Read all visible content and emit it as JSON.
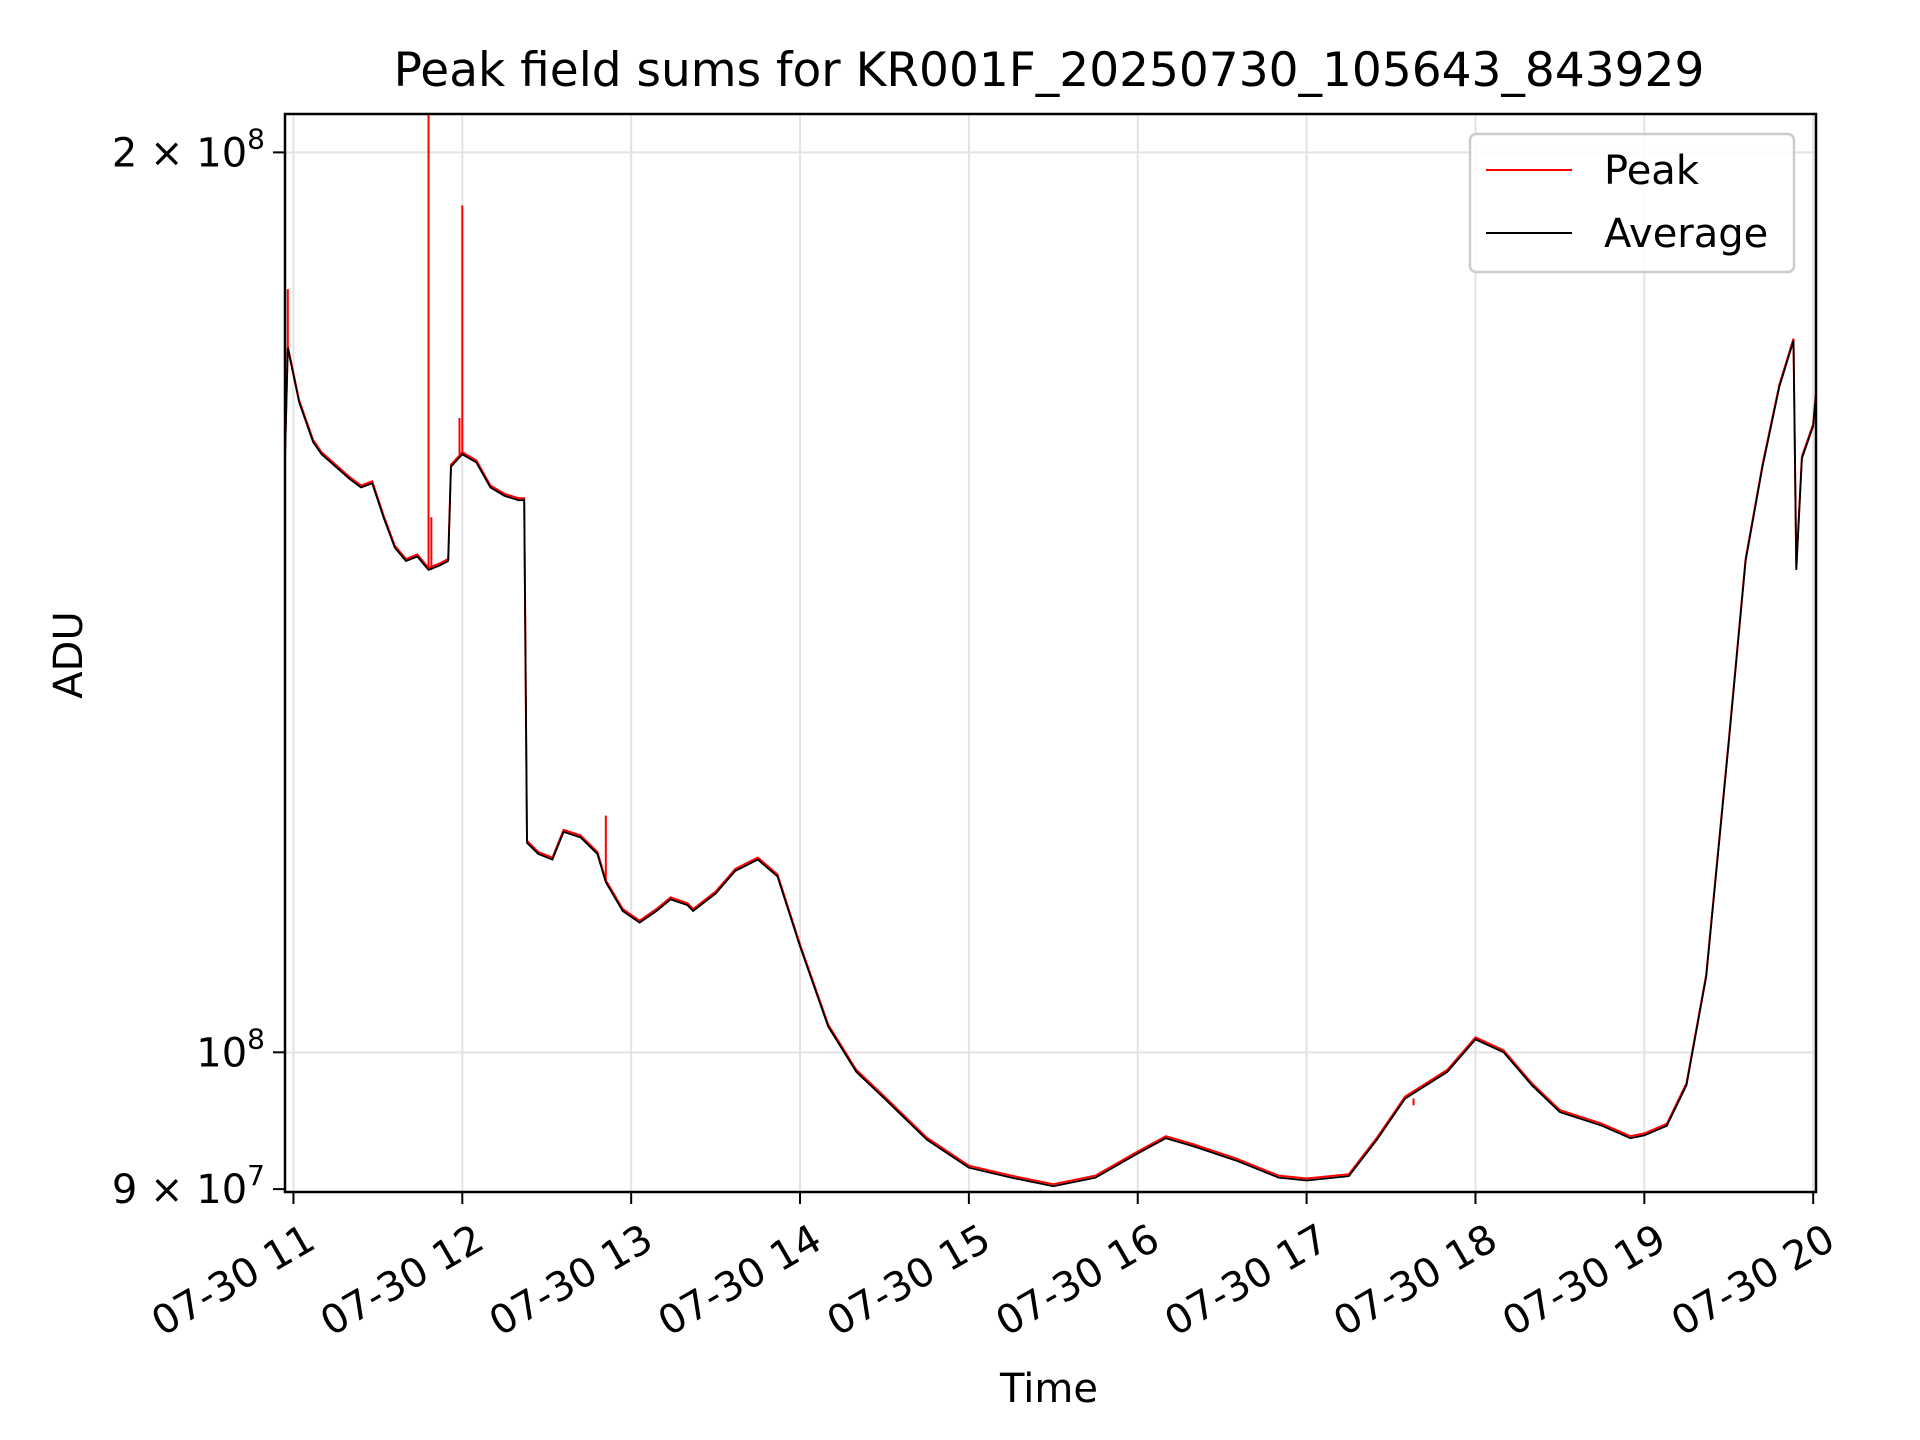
{
  "chart_data": {
    "type": "line",
    "title": "Peak field sums for KR001F_20250730_105643_843929",
    "xlabel": "Time",
    "ylabel": "ADU",
    "yscale": "log",
    "grid": true,
    "legend": {
      "placement": "top-right",
      "entries": [
        "Peak",
        "Average"
      ]
    },
    "xlim": [
      "2025-07-30 10:57",
      "2025-07-30 20:01"
    ],
    "ylim": [
      89800000,
      206000000
    ],
    "x_ticks": [
      {
        "value": "2025-07-30 11:00",
        "label": "07-30 11"
      },
      {
        "value": "2025-07-30 12:00",
        "label": "07-30 12"
      },
      {
        "value": "2025-07-30 13:00",
        "label": "07-30 13"
      },
      {
        "value": "2025-07-30 14:00",
        "label": "07-30 14"
      },
      {
        "value": "2025-07-30 15:00",
        "label": "07-30 15"
      },
      {
        "value": "2025-07-30 16:00",
        "label": "07-30 16"
      },
      {
        "value": "2025-07-30 17:00",
        "label": "07-30 17"
      },
      {
        "value": "2025-07-30 18:00",
        "label": "07-30 18"
      },
      {
        "value": "2025-07-30 19:00",
        "label": "07-30 19"
      },
      {
        "value": "2025-07-30 20:00",
        "label": "07-30 20"
      }
    ],
    "y_ticks": [
      {
        "value": 200000000,
        "mantissa": "2 × 10",
        "exp": "8"
      },
      {
        "value": 100000000,
        "mantissa": "10",
        "exp": "8"
      },
      {
        "value": 90000000,
        "mantissa": "9 × 10",
        "exp": "7"
      }
    ],
    "series": [
      {
        "name": "Average",
        "color": "#000000",
        "points": [
          [
            "2025-07-30 10:57",
            158000000
          ],
          [
            "2025-07-30 10:58",
            172000000
          ],
          [
            "2025-07-30 11:02",
            165000000
          ],
          [
            "2025-07-30 11:07",
            160000000
          ],
          [
            "2025-07-30 11:10",
            158500000
          ],
          [
            "2025-07-30 11:15",
            157000000
          ],
          [
            "2025-07-30 11:20",
            155500000
          ],
          [
            "2025-07-30 11:24",
            154500000
          ],
          [
            "2025-07-30 11:28",
            155000000
          ],
          [
            "2025-07-30 11:32",
            151000000
          ],
          [
            "2025-07-30 11:36",
            147500000
          ],
          [
            "2025-07-30 11:40",
            146000000
          ],
          [
            "2025-07-30 11:44",
            146500000
          ],
          [
            "2025-07-30 11:48",
            145000000
          ],
          [
            "2025-07-30 11:52",
            145500000
          ],
          [
            "2025-07-30 11:55",
            146000000
          ],
          [
            "2025-07-30 11:56",
            157000000
          ],
          [
            "2025-07-30 12:00",
            158500000
          ],
          [
            "2025-07-30 12:05",
            157500000
          ],
          [
            "2025-07-30 12:10",
            154500000
          ],
          [
            "2025-07-30 12:15",
            153500000
          ],
          [
            "2025-07-30 12:20",
            153000000
          ],
          [
            "2025-07-30 12:22",
            153000000
          ],
          [
            "2025-07-30 12:23",
            117500000
          ],
          [
            "2025-07-30 12:27",
            116500000
          ],
          [
            "2025-07-30 12:32",
            116000000
          ],
          [
            "2025-07-30 12:36",
            118500000
          ],
          [
            "2025-07-30 12:42",
            118000000
          ],
          [
            "2025-07-30 12:48",
            116500000
          ],
          [
            "2025-07-30 12:51",
            114000000
          ],
          [
            "2025-07-30 12:57",
            111500000
          ],
          [
            "2025-07-30 13:03",
            110500000
          ],
          [
            "2025-07-30 13:09",
            111500000
          ],
          [
            "2025-07-30 13:14",
            112500000
          ],
          [
            "2025-07-30 13:20",
            112000000
          ],
          [
            "2025-07-30 13:22",
            111500000
          ],
          [
            "2025-07-30 13:30",
            113000000
          ],
          [
            "2025-07-30 13:37",
            115000000
          ],
          [
            "2025-07-30 13:45",
            116000000
          ],
          [
            "2025-07-30 13:52",
            114500000
          ],
          [
            "2025-07-30 14:00",
            108500000
          ],
          [
            "2025-07-30 14:10",
            102000000
          ],
          [
            "2025-07-30 14:20",
            98500000
          ],
          [
            "2025-07-30 14:30",
            96500000
          ],
          [
            "2025-07-30 14:45",
            93500000
          ],
          [
            "2025-07-30 15:00",
            91500000
          ],
          [
            "2025-07-30 15:15",
            90800000
          ],
          [
            "2025-07-30 15:30",
            90200000
          ],
          [
            "2025-07-30 15:45",
            90800000
          ],
          [
            "2025-07-30 16:00",
            92500000
          ],
          [
            "2025-07-30 16:10",
            93600000
          ],
          [
            "2025-07-30 16:20",
            93000000
          ],
          [
            "2025-07-30 16:35",
            92000000
          ],
          [
            "2025-07-30 16:50",
            90800000
          ],
          [
            "2025-07-30 17:00",
            90600000
          ],
          [
            "2025-07-30 17:15",
            90900000
          ],
          [
            "2025-07-30 17:25",
            93500000
          ],
          [
            "2025-07-30 17:35",
            96500000
          ],
          [
            "2025-07-30 17:50",
            98500000
          ],
          [
            "2025-07-30 18:00",
            101000000
          ],
          [
            "2025-07-30 18:10",
            100000000
          ],
          [
            "2025-07-30 18:20",
            97500000
          ],
          [
            "2025-07-30 18:30",
            95500000
          ],
          [
            "2025-07-30 18:45",
            94500000
          ],
          [
            "2025-07-30 18:55",
            93600000
          ],
          [
            "2025-07-30 19:00",
            93800000
          ],
          [
            "2025-07-30 19:08",
            94500000
          ],
          [
            "2025-07-30 19:15",
            97500000
          ],
          [
            "2025-07-30 19:22",
            106000000
          ],
          [
            "2025-07-30 19:30",
            127000000
          ],
          [
            "2025-07-30 19:36",
            146000000
          ],
          [
            "2025-07-30 19:42",
            157000000
          ],
          [
            "2025-07-30 19:48",
            167000000
          ],
          [
            "2025-07-30 19:53",
            173000000
          ],
          [
            "2025-07-30 19:54",
            145000000
          ],
          [
            "2025-07-30 19:56",
            158000000
          ],
          [
            "2025-07-30 20:00",
            162000000
          ],
          [
            "2025-07-30 20:01",
            166000000
          ]
        ]
      },
      {
        "name": "Peak",
        "color": "#ff0000",
        "note_spikes": [
          [
            "2025-07-30 10:58",
            180000000
          ],
          [
            "2025-07-30 11:48",
            210000000
          ],
          [
            "2025-07-30 11:49",
            151000000
          ],
          [
            "2025-07-30 12:00",
            192000000
          ],
          [
            "2025-07-30 11:59",
            163000000
          ],
          [
            "2025-07-30 12:51",
            120000000
          ],
          [
            "2025-07-30 17:38",
            96000000
          ]
        ]
      }
    ]
  }
}
